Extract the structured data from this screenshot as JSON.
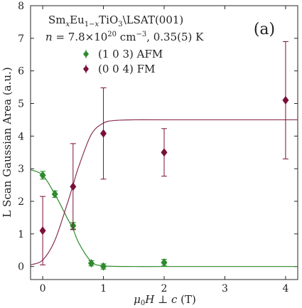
{
  "chart_data": {
    "type": "scatter",
    "panel_label": "(a)",
    "annotation_line1": "Sm_xEu_{1-x}TiO_3\\LSAT(001)",
    "annotation_line2": "n = 7.8×10^{20} cm^{-3}, 0.35(5) K",
    "xlabel": "μ₀H ⊥ c (T)",
    "ylabel": "L Scan Gaussian Area (a.u.)",
    "xlim": [
      -0.2,
      4.2
    ],
    "ylim": [
      -0.4,
      8
    ],
    "x_ticks": [
      0,
      1,
      2,
      3,
      4
    ],
    "y_ticks": [
      0,
      1,
      2,
      3,
      4,
      5,
      6,
      7,
      8
    ],
    "grid": false,
    "legend_position": "upper-left",
    "series": [
      {
        "name": "(1 0 3) AFM",
        "color": "#2e8b2e",
        "marker": "diamond",
        "x": [
          0,
          0.2,
          0.5,
          0.8,
          1.0,
          2.0
        ],
        "y": [
          2.8,
          2.22,
          1.25,
          0.1,
          0.0,
          0.12
        ],
        "yerr": [
          0.12,
          0.1,
          0.1,
          0.08,
          0.08,
          0.1
        ]
      },
      {
        "name": "(0 0 4) FM",
        "color": "#7a0f3a",
        "marker": "diamond",
        "x": [
          0,
          0.5,
          1.0,
          2.0,
          4.0
        ],
        "y": [
          1.1,
          2.45,
          4.08,
          3.5,
          5.1
        ],
        "yerr": [
          1.05,
          1.32,
          1.4,
          0.73,
          1.8
        ]
      }
    ],
    "fits": [
      {
        "color": "#2e8b2e",
        "x": [
          -0.2,
          0,
          0.2,
          0.4,
          0.5,
          0.6,
          0.8,
          1.0,
          1.5,
          2.0,
          4.2
        ],
        "y": [
          2.97,
          2.8,
          2.22,
          1.5,
          1.15,
          0.7,
          0.15,
          0.02,
          0.0,
          0.0,
          0.0
        ]
      },
      {
        "color": "#8a2f55",
        "x": [
          -0.2,
          0,
          0.2,
          0.4,
          0.5,
          0.6,
          0.8,
          1.0,
          1.2,
          1.5,
          2.0,
          4.2
        ],
        "y": [
          0.05,
          0.2,
          0.8,
          1.9,
          2.5,
          3.1,
          4.05,
          4.4,
          4.48,
          4.5,
          4.5,
          4.5
        ]
      }
    ]
  }
}
